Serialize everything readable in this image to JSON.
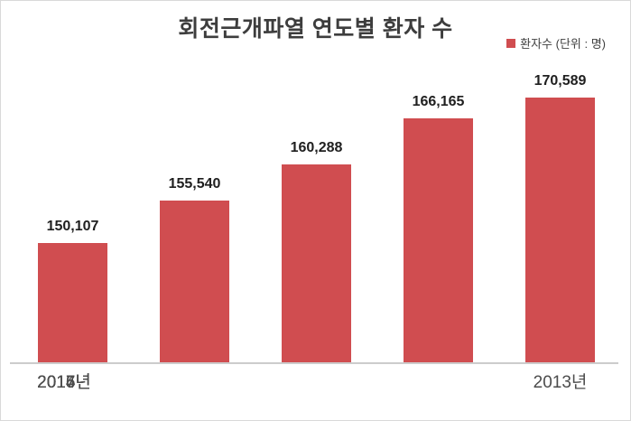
{
  "chart_data": {
    "type": "bar",
    "title": "회전근개파열 연도별 환자 수",
    "legend_label": "환자수 (단위 : 명)",
    "legend_position": "top-right",
    "series_name": "환자수",
    "categories": [
      "2013년",
      "2014년",
      "2015년",
      "2016년",
      "2017년"
    ],
    "values": [
      150107,
      155540,
      160288,
      166165,
      170589
    ],
    "value_labels": [
      "150,107",
      "155,540",
      "160,288",
      "166,165",
      "170,589"
    ],
    "xlabel": "",
    "ylabel": "",
    "ylim": [
      134600,
      172000
    ],
    "grid": false,
    "bar_color": "#d04d50",
    "axis_line_color": "#cccccc",
    "title_color": "#3d3d3d",
    "value_label_color": "#1f1f1f",
    "x_label_color": "#4c4c4c",
    "background_color": "#ffffff",
    "border_color": "#d9d9d9"
  }
}
